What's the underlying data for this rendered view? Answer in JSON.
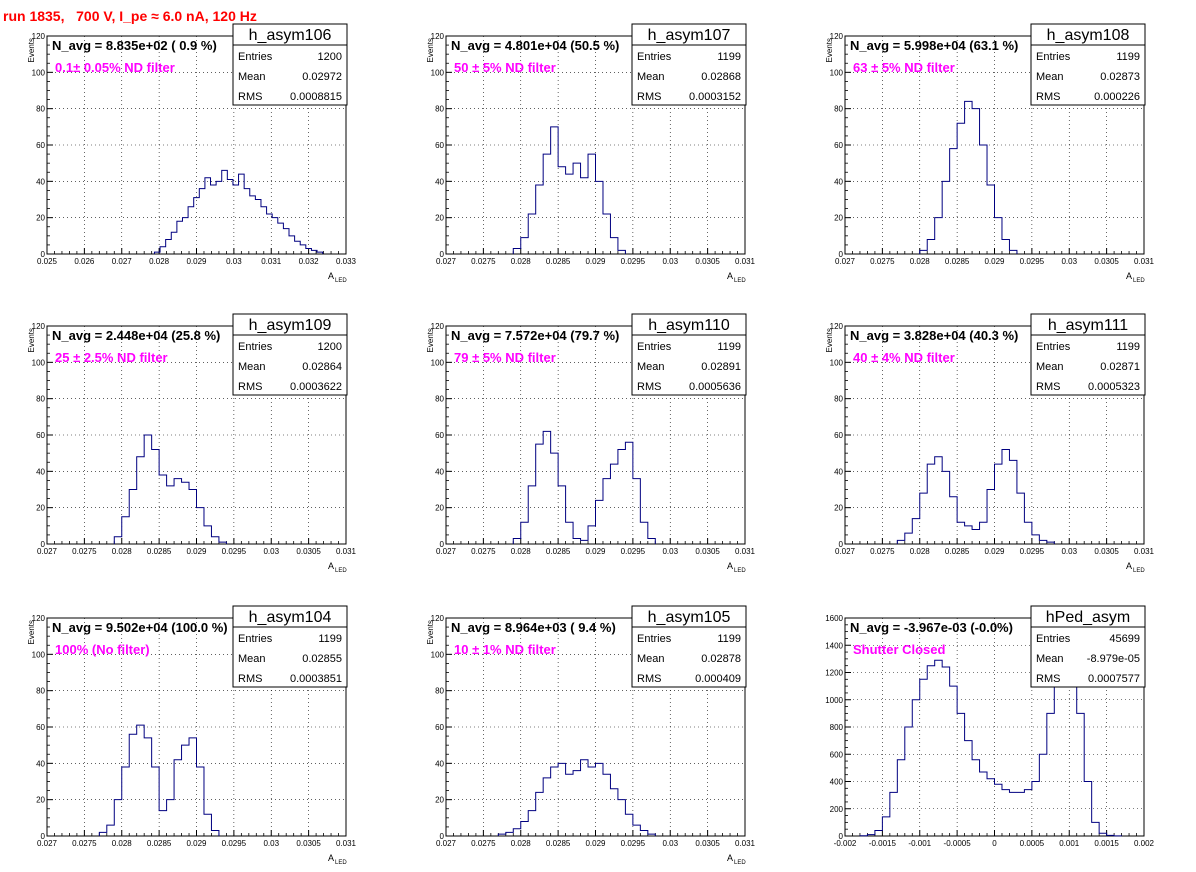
{
  "header": {
    "title": "run 1835,   700 V, I_pe ≈ 6.0 nA, 120 Hz"
  },
  "chart_data": [
    {
      "type": "histogram",
      "stats": {
        "title": "h_asym106",
        "entries": "1200",
        "mean": "0.02972",
        "rms": "0.0008815"
      },
      "navg": "N_avg = 8.835e+02 ( 0.9 %)",
      "filter_label": "0.1± 0.05% ND filter",
      "ylabel": "Events",
      "xlabel": "A",
      "xlabel_sub": "LED",
      "xlim": [
        0.025,
        0.033
      ],
      "ylim": [
        0,
        120
      ],
      "xticks": [
        0.025,
        0.026,
        0.027,
        0.028,
        0.029,
        0.03,
        0.031,
        0.032,
        0.033
      ],
      "xtick_labels": [
        "0.025",
        "0.026",
        "0.027",
        "0.028",
        "0.029",
        "0.03",
        "0.031",
        "0.032",
        "0.033"
      ],
      "yticks": [
        0,
        20,
        40,
        60,
        80,
        100,
        120
      ],
      "ytick_labels": [
        "0",
        "20",
        "40",
        "60",
        "80",
        "100",
        "120"
      ],
      "x": [
        0.02795,
        0.0281,
        0.02825,
        0.0284,
        0.02855,
        0.0287,
        0.02885,
        0.029,
        0.02915,
        0.0293,
        0.02945,
        0.0296,
        0.02975,
        0.0299,
        0.03005,
        0.0302,
        0.03035,
        0.0305,
        0.03065,
        0.0308,
        0.03095,
        0.0311,
        0.03125,
        0.0314,
        0.03155,
        0.0317,
        0.03185,
        0.032,
        0.03215,
        0.0323
      ],
      "y": [
        1,
        4,
        8,
        12,
        18,
        20,
        26,
        31,
        36,
        42,
        38,
        40,
        46,
        41,
        38,
        44,
        36,
        32,
        30,
        26,
        22,
        20,
        17,
        14,
        10,
        7,
        5,
        3,
        2,
        1
      ]
    },
    {
      "type": "histogram",
      "stats": {
        "title": "h_asym107",
        "entries": "1199",
        "mean": "0.02868",
        "rms": "0.0003152"
      },
      "navg": "N_avg = 4.801e+04 (50.5 %)",
      "filter_label": "50 ± 5% ND filter",
      "ylabel": "Events",
      "xlabel": "A",
      "xlabel_sub": "LED",
      "xlim": [
        0.027,
        0.031
      ],
      "ylim": [
        0,
        120
      ],
      "xticks": [
        0.027,
        0.0275,
        0.028,
        0.0285,
        0.029,
        0.0295,
        0.03,
        0.0305,
        0.031
      ],
      "xtick_labels": [
        "0.027",
        "0.0275",
        "0.028",
        "0.0285",
        "0.029",
        "0.0295",
        "0.03",
        "0.0305",
        "0.031"
      ],
      "yticks": [
        0,
        20,
        40,
        60,
        80,
        100,
        120
      ],
      "ytick_labels": [
        "0",
        "20",
        "40",
        "60",
        "80",
        "100",
        "120"
      ],
      "x": [
        0.02795,
        0.02805,
        0.02815,
        0.02825,
        0.02835,
        0.02845,
        0.02855,
        0.02865,
        0.02875,
        0.02885,
        0.02895,
        0.02905,
        0.02915,
        0.02925,
        0.02935
      ],
      "y": [
        3,
        9,
        22,
        38,
        55,
        70,
        48,
        44,
        50,
        42,
        55,
        40,
        22,
        9,
        2
      ]
    },
    {
      "type": "histogram",
      "stats": {
        "title": "h_asym108",
        "entries": "1199",
        "mean": "0.02873",
        "rms": "0.000226"
      },
      "navg": "N_avg = 5.998e+04 (63.1 %)",
      "filter_label": "63 ± 5% ND filter",
      "ylabel": "Events",
      "xlabel": "A",
      "xlabel_sub": "LED",
      "xlim": [
        0.027,
        0.031
      ],
      "ylim": [
        0,
        120
      ],
      "xticks": [
        0.027,
        0.0275,
        0.028,
        0.0285,
        0.029,
        0.0295,
        0.03,
        0.0305,
        0.031
      ],
      "xtick_labels": [
        "0.027",
        "0.0275",
        "0.028",
        "0.0285",
        "0.029",
        "0.0295",
        "0.03",
        "0.0305",
        "0.031"
      ],
      "yticks": [
        0,
        20,
        40,
        60,
        80,
        100,
        120
      ],
      "ytick_labels": [
        "0",
        "20",
        "40",
        "60",
        "80",
        "100",
        "120"
      ],
      "x": [
        0.02805,
        0.02815,
        0.02825,
        0.02835,
        0.02845,
        0.02855,
        0.02865,
        0.02875,
        0.02885,
        0.02895,
        0.02905,
        0.02915,
        0.02925
      ],
      "y": [
        2,
        8,
        20,
        40,
        58,
        72,
        84,
        80,
        60,
        38,
        20,
        8,
        2
      ]
    },
    {
      "type": "histogram",
      "stats": {
        "title": "h_asym109",
        "entries": "1200",
        "mean": "0.02864",
        "rms": "0.0003622"
      },
      "navg": "N_avg = 2.448e+04 (25.8 %)",
      "filter_label": "25 ± 2.5% ND filter",
      "ylabel": "Events",
      "xlabel": "A",
      "xlabel_sub": "LED",
      "xlim": [
        0.027,
        0.031
      ],
      "ylim": [
        0,
        120
      ],
      "xticks": [
        0.027,
        0.0275,
        0.028,
        0.0285,
        0.029,
        0.0295,
        0.03,
        0.0305,
        0.031
      ],
      "xtick_labels": [
        "0.027",
        "0.0275",
        "0.028",
        "0.0285",
        "0.029",
        "0.0295",
        "0.03",
        "0.0305",
        "0.031"
      ],
      "yticks": [
        0,
        20,
        40,
        60,
        80,
        100,
        120
      ],
      "ytick_labels": [
        "0",
        "20",
        "40",
        "60",
        "80",
        "100",
        "120"
      ],
      "x": [
        0.02795,
        0.02805,
        0.02815,
        0.02825,
        0.02835,
        0.02845,
        0.02855,
        0.02865,
        0.02875,
        0.02885,
        0.02895,
        0.02905,
        0.02915,
        0.02925,
        0.02935
      ],
      "y": [
        4,
        15,
        30,
        48,
        60,
        52,
        38,
        32,
        36,
        34,
        30,
        20,
        10,
        4,
        1
      ]
    },
    {
      "type": "histogram",
      "stats": {
        "title": "h_asym110",
        "entries": "1199",
        "mean": "0.02891",
        "rms": "0.0005636"
      },
      "navg": "N_avg = 7.572e+04 (79.7 %)",
      "filter_label": "79 ± 5% ND filter",
      "ylabel": "Events",
      "xlabel": "A",
      "xlabel_sub": "LED",
      "xlim": [
        0.027,
        0.031
      ],
      "ylim": [
        0,
        120
      ],
      "xticks": [
        0.027,
        0.0275,
        0.028,
        0.0285,
        0.029,
        0.0295,
        0.03,
        0.0305,
        0.031
      ],
      "xtick_labels": [
        "0.027",
        "0.0275",
        "0.028",
        "0.0285",
        "0.029",
        "0.0295",
        "0.03",
        "0.0305",
        "0.031"
      ],
      "yticks": [
        0,
        20,
        40,
        60,
        80,
        100,
        120
      ],
      "ytick_labels": [
        "0",
        "20",
        "40",
        "60",
        "80",
        "100",
        "120"
      ],
      "x": [
        0.02795,
        0.02805,
        0.02815,
        0.02825,
        0.02835,
        0.02845,
        0.02855,
        0.02865,
        0.02875,
        0.02885,
        0.02895,
        0.02905,
        0.02915,
        0.02925,
        0.02935,
        0.02945,
        0.02955,
        0.02965,
        0.02975
      ],
      "y": [
        3,
        12,
        32,
        55,
        62,
        50,
        32,
        12,
        3,
        2,
        10,
        24,
        36,
        44,
        52,
        56,
        36,
        12,
        3
      ]
    },
    {
      "type": "histogram",
      "stats": {
        "title": "h_asym111",
        "entries": "1199",
        "mean": "0.02871",
        "rms": "0.0005323"
      },
      "navg": "N_avg = 3.828e+04 (40.3 %)",
      "filter_label": "40 ± 4% ND filter",
      "ylabel": "Events",
      "xlabel": "A",
      "xlabel_sub": "LED",
      "xlim": [
        0.027,
        0.031
      ],
      "ylim": [
        0,
        120
      ],
      "xticks": [
        0.027,
        0.0275,
        0.028,
        0.0285,
        0.029,
        0.0295,
        0.03,
        0.0305,
        0.031
      ],
      "xtick_labels": [
        "0.027",
        "0.0275",
        "0.028",
        "0.0285",
        "0.029",
        "0.0295",
        "0.03",
        "0.0305",
        "0.031"
      ],
      "yticks": [
        0,
        20,
        40,
        60,
        80,
        100,
        120
      ],
      "ytick_labels": [
        "0",
        "20",
        "40",
        "60",
        "80",
        "100",
        "120"
      ],
      "x": [
        0.02775,
        0.02785,
        0.02795,
        0.02805,
        0.02815,
        0.02825,
        0.02835,
        0.02845,
        0.02855,
        0.02865,
        0.02875,
        0.02885,
        0.02895,
        0.02905,
        0.02915,
        0.02925,
        0.02935,
        0.02945,
        0.02955,
        0.02965,
        0.02975
      ],
      "y": [
        2,
        6,
        14,
        28,
        44,
        48,
        40,
        26,
        12,
        10,
        8,
        12,
        30,
        44,
        52,
        46,
        28,
        12,
        5,
        2,
        1
      ]
    },
    {
      "type": "histogram",
      "stats": {
        "title": "h_asym104",
        "entries": "1199",
        "mean": "0.02855",
        "rms": "0.0003851"
      },
      "navg": "N_avg = 9.502e+04 (100.0 %)",
      "filter_label": "100% (No filter)",
      "ylabel": "Events",
      "xlabel": "A",
      "xlabel_sub": "LED",
      "xlim": [
        0.027,
        0.031
      ],
      "ylim": [
        0,
        120
      ],
      "xticks": [
        0.027,
        0.0275,
        0.028,
        0.0285,
        0.029,
        0.0295,
        0.03,
        0.0305,
        0.031
      ],
      "xtick_labels": [
        "0.027",
        "0.0275",
        "0.028",
        "0.0285",
        "0.029",
        "0.0295",
        "0.03",
        "0.0305",
        "0.031"
      ],
      "yticks": [
        0,
        20,
        40,
        60,
        80,
        100,
        120
      ],
      "ytick_labels": [
        "0",
        "20",
        "40",
        "60",
        "80",
        "100",
        "120"
      ],
      "x": [
        0.02775,
        0.02785,
        0.02795,
        0.02805,
        0.02815,
        0.02825,
        0.02835,
        0.02845,
        0.02855,
        0.02865,
        0.02875,
        0.02885,
        0.02895,
        0.02905,
        0.02915,
        0.02925
      ],
      "y": [
        2,
        6,
        20,
        38,
        56,
        61,
        54,
        38,
        14,
        20,
        42,
        50,
        54,
        38,
        12,
        3
      ]
    },
    {
      "type": "histogram",
      "stats": {
        "title": "h_asym105",
        "entries": "1199",
        "mean": "0.02878",
        "rms": "0.000409"
      },
      "navg": "N_avg = 8.964e+03 ( 9.4 %)",
      "filter_label": "10 ± 1% ND filter",
      "ylabel": "Events",
      "xlabel": "A",
      "xlabel_sub": "LED",
      "xlim": [
        0.027,
        0.031
      ],
      "ylim": [
        0,
        120
      ],
      "xticks": [
        0.027,
        0.0275,
        0.028,
        0.0285,
        0.029,
        0.0295,
        0.03,
        0.0305,
        0.031
      ],
      "xtick_labels": [
        "0.027",
        "0.0275",
        "0.028",
        "0.0285",
        "0.029",
        "0.0295",
        "0.03",
        "0.0305",
        "0.031"
      ],
      "yticks": [
        0,
        20,
        40,
        60,
        80,
        100,
        120
      ],
      "ytick_labels": [
        "0",
        "20",
        "40",
        "60",
        "80",
        "100",
        "120"
      ],
      "x": [
        0.02775,
        0.02785,
        0.02795,
        0.02805,
        0.02815,
        0.02825,
        0.02835,
        0.02845,
        0.02855,
        0.02865,
        0.02875,
        0.02885,
        0.02895,
        0.02905,
        0.02915,
        0.02925,
        0.02935,
        0.02945,
        0.02955,
        0.02965,
        0.02975
      ],
      "y": [
        1,
        2,
        4,
        8,
        14,
        24,
        32,
        38,
        40,
        34,
        36,
        42,
        38,
        40,
        34,
        26,
        20,
        12,
        6,
        3,
        1
      ]
    },
    {
      "type": "histogram",
      "stats": {
        "title": "hPed_asym",
        "entries": "45699",
        "mean": "-8.979e-05",
        "rms": "0.0007577"
      },
      "navg": "N_avg = -3.967e-03 (-0.0%)",
      "filter_label": "Shutter Closed",
      "ylabel": "",
      "xlabel": "",
      "xlabel_sub": "",
      "xlim": [
        -0.002,
        0.002
      ],
      "ylim": [
        0,
        1600
      ],
      "xticks": [
        -0.002,
        -0.0015,
        -0.001,
        -0.0005,
        0,
        0.0005,
        0.001,
        0.0015,
        0.002
      ],
      "xtick_labels": [
        "-0.002",
        "-0.0015",
        "-0.001",
        "-0.0005",
        "0",
        "0.0005",
        "0.001",
        "0.0015",
        "0.002"
      ],
      "yticks": [
        0,
        200,
        400,
        600,
        800,
        1000,
        1200,
        1400,
        1600
      ],
      "ytick_labels": [
        "0",
        "200",
        "400",
        "600",
        "800",
        "1000",
        "1200",
        "1400",
        "1600"
      ],
      "x": [
        -0.00175,
        -0.00165,
        -0.00155,
        -0.00145,
        -0.00135,
        -0.00125,
        -0.00115,
        -0.00105,
        -0.00095,
        -0.00085,
        -0.00075,
        -0.00065,
        -0.00055,
        -0.00045,
        -0.00035,
        -0.00025,
        -0.00015,
        -5e-05,
        5e-05,
        0.00015,
        0.00025,
        0.00035,
        0.00045,
        0.00055,
        0.00065,
        0.00075,
        0.00085,
        0.00095,
        0.00105,
        0.00115,
        0.00125,
        0.00135,
        0.00145,
        0.00155,
        0.00165
      ],
      "y": [
        2,
        10,
        40,
        140,
        320,
        560,
        800,
        1000,
        1150,
        1250,
        1290,
        1240,
        1100,
        900,
        700,
        560,
        470,
        420,
        380,
        340,
        320,
        320,
        340,
        400,
        600,
        900,
        1300,
        1550,
        1400,
        900,
        400,
        100,
        20,
        5,
        1
      ]
    }
  ]
}
